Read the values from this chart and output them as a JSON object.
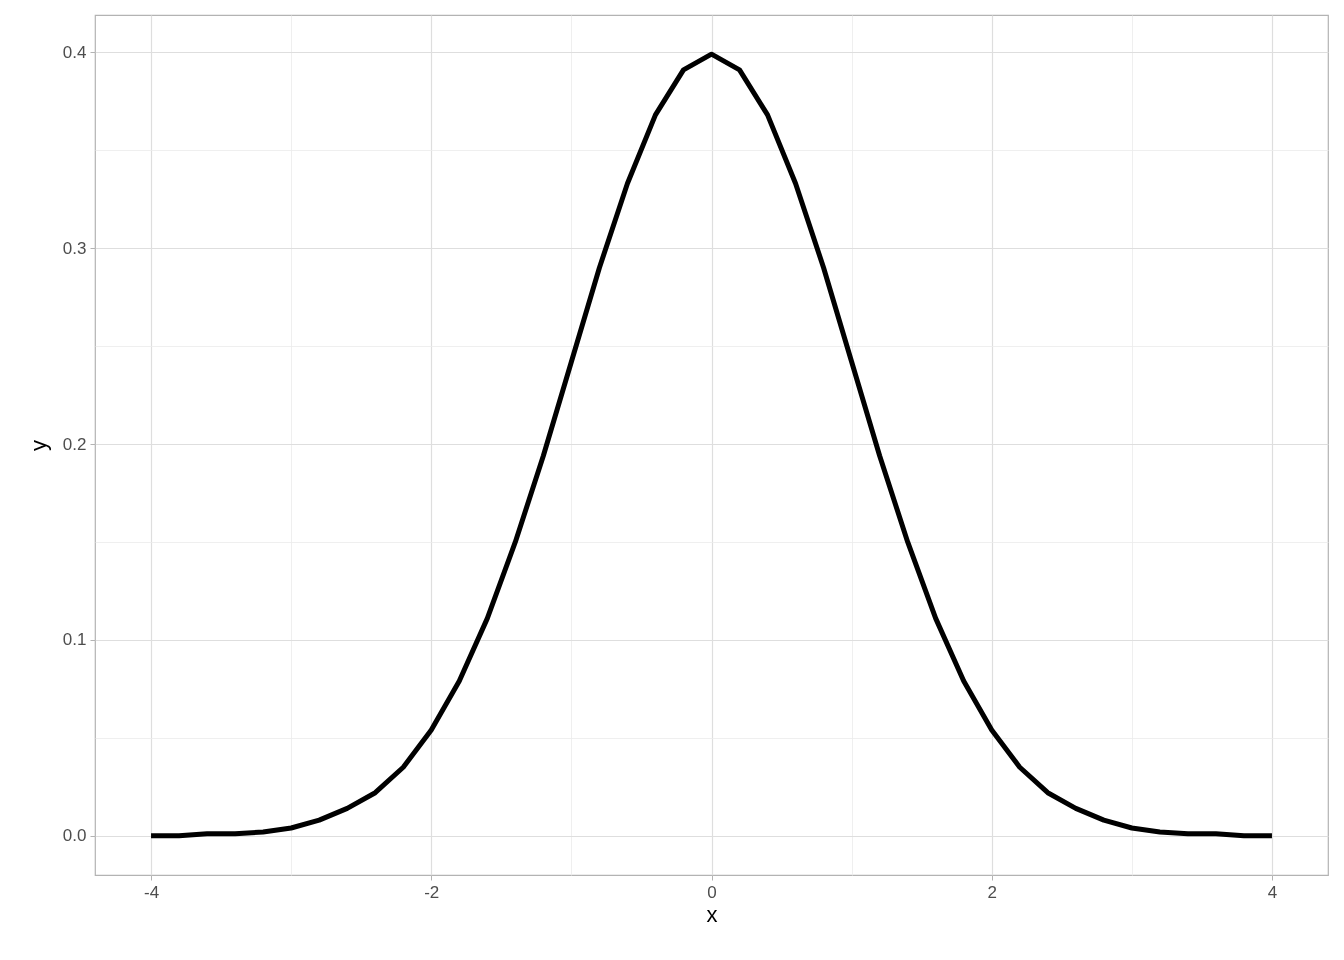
{
  "chart_data": {
    "type": "line",
    "xlabel": "x",
    "ylabel": "y",
    "x": [
      -4,
      -3.8,
      -3.6,
      -3.4,
      -3.2,
      -3,
      -2.8,
      -2.6,
      -2.4,
      -2.2,
      -2,
      -1.8,
      -1.6,
      -1.4,
      -1.2,
      -1,
      -0.8,
      -0.6,
      -0.4,
      -0.2,
      0,
      0.2,
      0.4,
      0.6,
      0.8,
      1,
      1.2,
      1.4,
      1.6,
      1.8,
      2,
      2.2,
      2.4,
      2.6,
      2.8,
      3,
      3.2,
      3.4,
      3.6,
      3.8,
      4
    ],
    "values": [
      0.0,
      0.0,
      0.001,
      0.001,
      0.002,
      0.004,
      0.008,
      0.014,
      0.022,
      0.035,
      0.054,
      0.079,
      0.111,
      0.15,
      0.194,
      0.242,
      0.29,
      0.333,
      0.368,
      0.391,
      0.399,
      0.391,
      0.368,
      0.333,
      0.29,
      0.242,
      0.194,
      0.15,
      0.111,
      0.079,
      0.054,
      0.035,
      0.022,
      0.014,
      0.008,
      0.004,
      0.002,
      0.001,
      0.001,
      0.0,
      0.0
    ],
    "color": "#000000",
    "line_style": "solid",
    "xlim": [
      -4.4,
      4.4
    ],
    "ylim": [
      -0.02,
      0.419
    ],
    "xticks": [
      -4,
      {
        "value": -3,
        "label": null
      },
      -2,
      {
        "value": -1,
        "label": null
      },
      0,
      {
        "value": 1,
        "label": null
      },
      2,
      {
        "value": 3,
        "label": null
      },
      4
    ],
    "yticks": [
      {
        "value": 0,
        "label": "0.0"
      },
      {
        "value": 0.05,
        "label": null
      },
      0.1,
      {
        "value": 0.15,
        "label": null
      },
      0.2,
      {
        "value": 0.25,
        "label": null
      },
      0.3,
      {
        "value": 0.35,
        "label": null
      },
      0.4
    ],
    "grid": true
  }
}
